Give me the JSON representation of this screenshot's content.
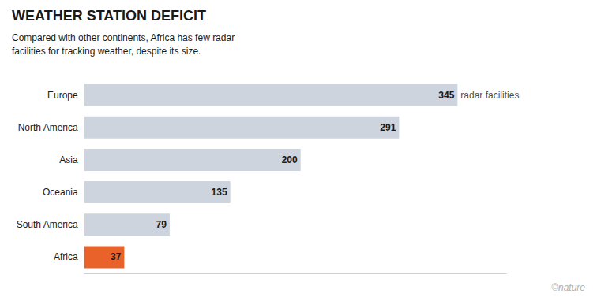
{
  "chart_data": {
    "type": "bar",
    "title": "WEATHER STATION DEFICIT",
    "subtitle": "Compared with other continents, Africa has few radar\nfacilities for tracking weather, despite its size.",
    "categories": [
      "Europe",
      "North America",
      "Asia",
      "Oceania",
      "South America",
      "Africa"
    ],
    "values": [
      345,
      291,
      200,
      135,
      79,
      37
    ],
    "colors": [
      "#cdd4de",
      "#cdd4de",
      "#cdd4de",
      "#cdd4de",
      "#cdd4de",
      "#e8622a"
    ],
    "xlim": [
      0,
      390
    ],
    "orientation": "horizontal",
    "data_labels": true,
    "tick_labels": "y",
    "grid": false,
    "annotations": [
      {
        "text": "radar facilities",
        "category": "Europe"
      },
      {
        "text": "©nature"
      }
    ]
  }
}
